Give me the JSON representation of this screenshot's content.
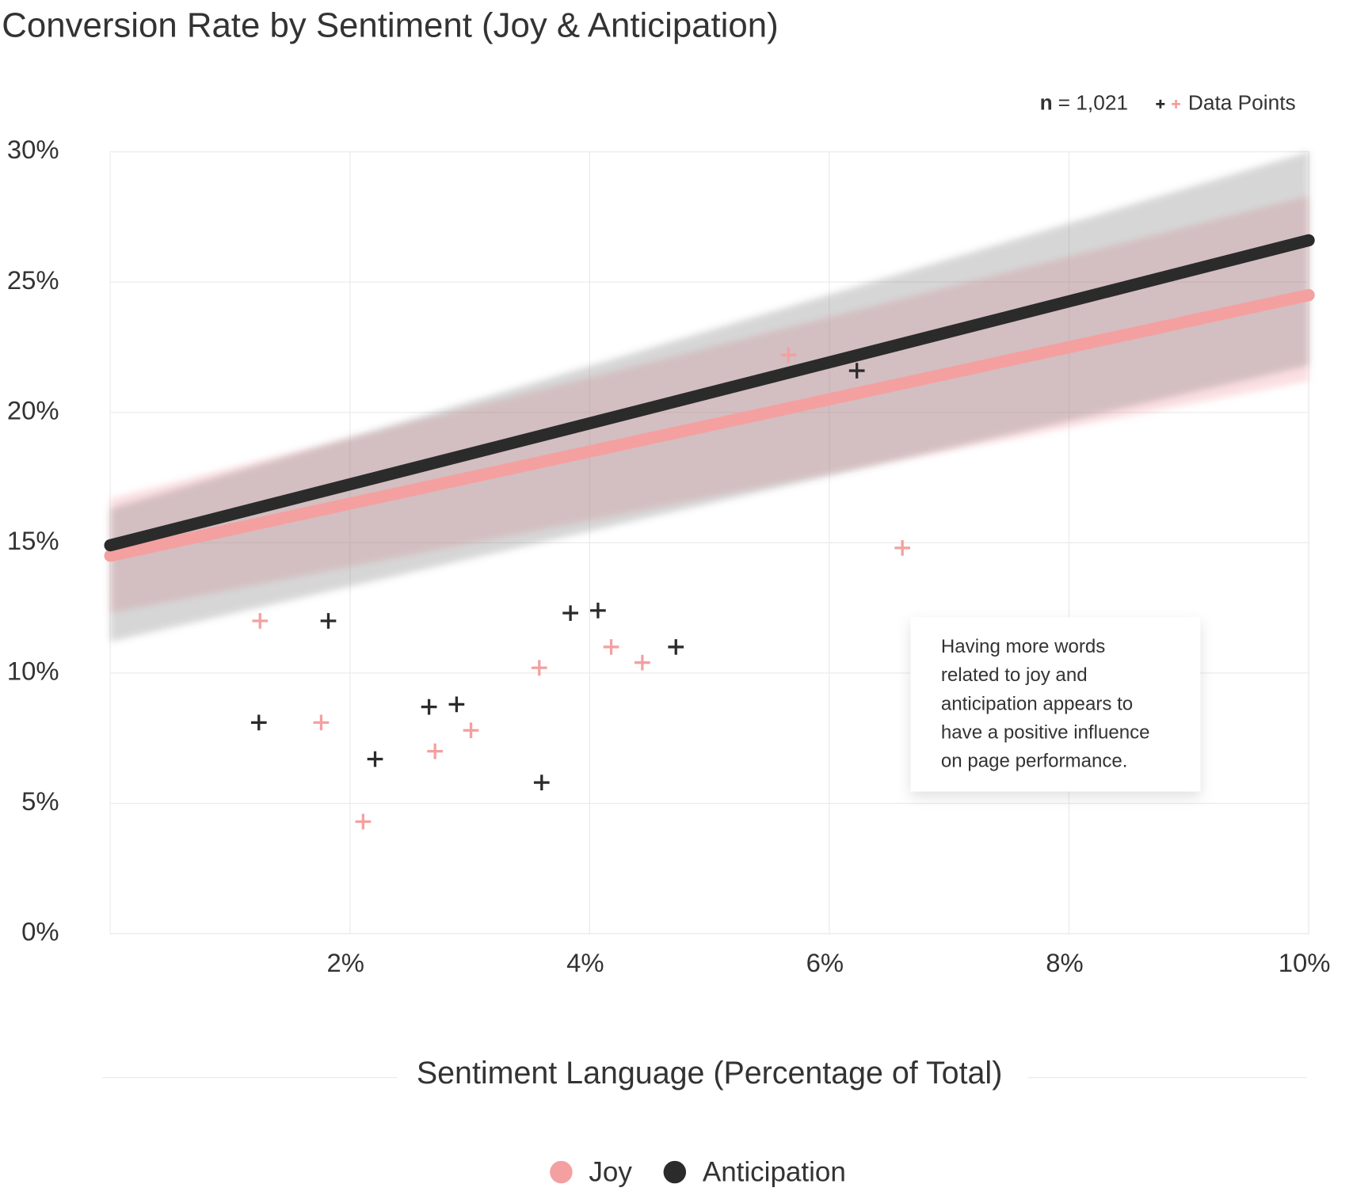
{
  "chart_data": {
    "type": "scatter",
    "title": "Conversion Rate by Sentiment (Joy & Anticipation)",
    "x_label": "Sentiment Language (Percentage of Total)",
    "n_symbol": "n",
    "n_text": "= 1,021",
    "points_legend": "Data Points",
    "annotation": [
      "Having more words",
      "related to joy and",
      "anticipation appears to",
      "have a positive influence",
      "on page performance."
    ],
    "xlim": [
      0,
      10
    ],
    "ylim": [
      0,
      30
    ],
    "xticks": [
      {
        "value": 2,
        "label": "2%"
      },
      {
        "value": 4,
        "label": "4%"
      },
      {
        "value": 6,
        "label": "6%"
      },
      {
        "value": 8,
        "label": "8%"
      },
      {
        "value": 10,
        "label": "10%"
      }
    ],
    "yticks": [
      {
        "value": 0,
        "label": "0%"
      },
      {
        "value": 5,
        "label": "5%"
      },
      {
        "value": 10,
        "label": "10%"
      },
      {
        "value": 15,
        "label": "15%"
      },
      {
        "value": 20,
        "label": "20%"
      },
      {
        "value": 25,
        "label": "25%"
      },
      {
        "value": 30,
        "label": "30%"
      }
    ],
    "grid": true,
    "trend_x": [
      0,
      10
    ],
    "series": [
      {
        "name": "Joy",
        "color": "#f4a0a0",
        "x": [
          1.25,
          1.76,
          2.11,
          2.71,
          3.01,
          3.58,
          4.18,
          4.44,
          5.66,
          6.61
        ],
        "y": [
          12.0,
          8.1,
          4.3,
          7.0,
          7.8,
          10.2,
          11.0,
          10.4,
          22.2,
          14.8
        ],
        "trend": [
          14.5,
          24.5
        ],
        "band_low": [
          12.3,
          21.2
        ],
        "band_high": [
          16.7,
          28.3
        ]
      },
      {
        "name": "Anticipation",
        "color": "#2b2b2b",
        "x": [
          1.24,
          1.82,
          2.21,
          2.66,
          2.89,
          3.6,
          3.84,
          4.07,
          4.72,
          6.23
        ],
        "y": [
          8.1,
          12.0,
          6.7,
          8.7,
          8.8,
          5.8,
          12.3,
          12.4,
          11.0,
          21.6
        ],
        "trend": [
          14.9,
          26.6
        ],
        "band_low": [
          11.2,
          21.8
        ],
        "band_high": [
          16.3,
          30.0
        ]
      }
    ]
  }
}
